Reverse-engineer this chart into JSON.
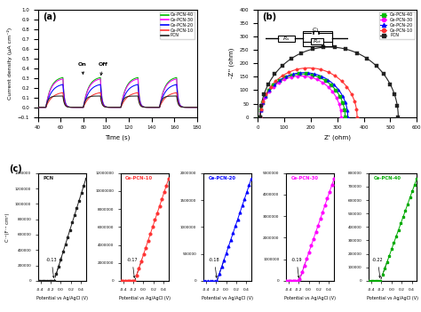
{
  "panel_a": {
    "title": "(a)",
    "xlabel": "Time (s)",
    "ylabel": "Current density (μA cm⁻²)",
    "ylim": [
      -0.1,
      1.0
    ],
    "xlim": [
      40,
      180
    ],
    "xticks": [
      40,
      60,
      80,
      100,
      120,
      140,
      160,
      180
    ],
    "yticks": [
      -0.1,
      0.0,
      0.1,
      0.2,
      0.3,
      0.4,
      0.5,
      0.6,
      0.7,
      0.8,
      0.9,
      1.0
    ],
    "series": {
      "Ce-PCN-40": {
        "color": "#00bb00",
        "peak": 0.315,
        "tau_rise": 4.5,
        "tau_fall": 1.2
      },
      "Ce-PCN-30": {
        "color": "#ff00ff",
        "peak": 0.3,
        "tau_rise": 4.5,
        "tau_fall": 1.2
      },
      "Ce-PCN-20": {
        "color": "#0000ff",
        "peak": 0.245,
        "tau_rise": 5.0,
        "tau_fall": 1.2
      },
      "Ce-PCN-10": {
        "color": "#ff3333",
        "peak": 0.16,
        "tau_rise": 5.5,
        "tau_fall": 1.2
      },
      "PCN": {
        "color": "#222222",
        "peak": 0.115,
        "tau_rise": 2.0,
        "tau_fall": 1.2
      }
    },
    "legend_order": [
      "Ce-PCN-40",
      "Ce-PCN-30",
      "Ce-PCN-20",
      "Ce-PCN-10",
      "PCN"
    ],
    "on_times": [
      47,
      80,
      113,
      147
    ],
    "off_times": [
      62,
      95,
      128,
      162
    ]
  },
  "panel_b": {
    "title": "(b)",
    "xlabel": "Z' (ohm)",
    "ylabel": "-Z'' (ohm)",
    "xlim": [
      0,
      600
    ],
    "ylim": [
      0,
      400
    ],
    "xticks": [
      0,
      100,
      200,
      300,
      400,
      500,
      600
    ],
    "yticks": [
      0,
      50,
      100,
      150,
      200,
      250,
      300,
      350,
      400
    ],
    "series": {
      "PCN": {
        "color": "#222222",
        "marker": "s",
        "x0": 10,
        "diameter": 520
      },
      "Ce-PCN-10": {
        "color": "#ff3333",
        "marker": "o",
        "x0": 10,
        "diameter": 365
      },
      "Ce-PCN-20": {
        "color": "#0000ff",
        "marker": "^",
        "x0": 10,
        "diameter": 330
      },
      "Ce-PCN-30": {
        "color": "#ff00ff",
        "marker": "o",
        "x0": 10,
        "diameter": 305
      },
      "Ce-PCN-40": {
        "color": "#00bb00",
        "marker": "s",
        "x0": 10,
        "diameter": 320
      }
    },
    "legend_order": [
      "Ce-PCN-40",
      "Ce-PCN-30",
      "Ce-PCN-20",
      "Ce-PCN-10",
      "PCN"
    ]
  },
  "panel_c": {
    "title": "(c)",
    "xlabel": "Potential vs Ag/AgCl (V)",
    "ylabel": "C⁻²(F⁻² cm⁴)",
    "subplots": [
      {
        "label": "PCN",
        "color": "#222222",
        "marker": "s",
        "flatband": -0.13,
        "xlim": [
          -0.45,
          0.5
        ],
        "ylim": [
          0,
          1400000
        ],
        "yticks": [
          0,
          200000,
          400000,
          600000,
          800000,
          1000000,
          1200000,
          1400000
        ]
      },
      {
        "label": "Ce-PCN-10",
        "color": "#ff3333",
        "marker": "o",
        "flatband": -0.17,
        "xlim": [
          -0.45,
          0.5
        ],
        "ylim": [
          0,
          12000000
        ],
        "yticks": [
          0,
          2000000,
          4000000,
          6000000,
          8000000,
          10000000,
          12000000
        ]
      },
      {
        "label": "Ce-PCN-20",
        "color": "#0000ff",
        "marker": "^",
        "flatband": -0.18,
        "xlim": [
          -0.45,
          0.5
        ],
        "ylim": [
          0,
          2000000
        ],
        "yticks": [
          0,
          500000,
          1000000,
          1500000,
          2000000
        ]
      },
      {
        "label": "Ce-PCN-30",
        "color": "#ff00ff",
        "marker": "o",
        "flatband": -0.19,
        "xlim": [
          -0.45,
          0.5
        ],
        "ylim": [
          0,
          5000000
        ],
        "yticks": [
          0,
          1000000,
          2000000,
          3000000,
          4000000,
          5000000
        ]
      },
      {
        "label": "Ce-PCN-40",
        "color": "#00aa00",
        "marker": "s",
        "flatband": -0.22,
        "xlim": [
          -0.45,
          0.5
        ],
        "ylim": [
          0,
          800000
        ],
        "yticks": [
          0,
          100000,
          200000,
          300000,
          400000,
          500000,
          600000,
          700000,
          800000
        ]
      }
    ]
  }
}
